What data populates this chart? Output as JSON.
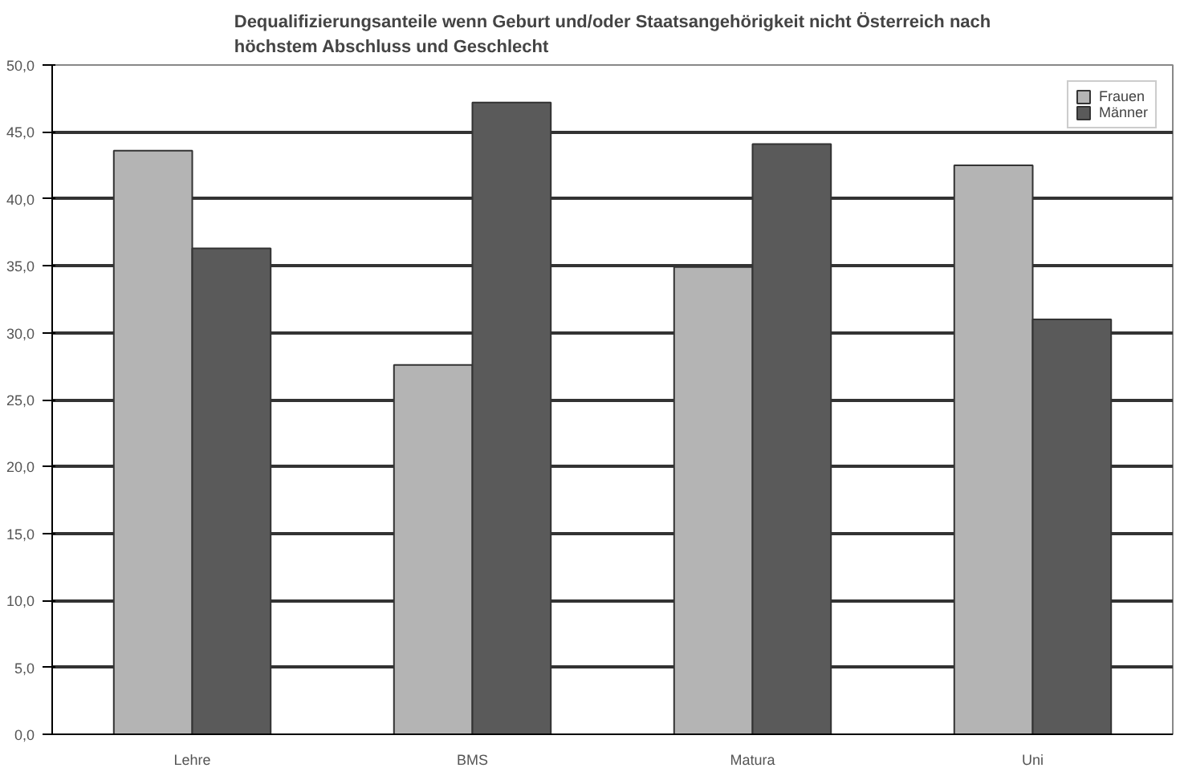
{
  "chart_data": {
    "type": "bar",
    "title": "Dequalifizierungsanteile wenn Geburt und/oder Staatsangehörigkeit nicht Österreich nach\nhöchstem Abschluss und Geschlecht",
    "categories": [
      "Lehre",
      "BMS",
      "Matura",
      "Uni"
    ],
    "series": [
      {
        "name": "Frauen",
        "color": "#b4b4b4",
        "values": [
          43.6,
          27.6,
          34.9,
          42.5
        ]
      },
      {
        "name": "Männer",
        "color": "#5a5a5a",
        "values": [
          36.3,
          47.2,
          44.1,
          31.0
        ]
      }
    ],
    "ylim": [
      0,
      50
    ],
    "yticks": [
      {
        "value": 0,
        "label": "0,0"
      },
      {
        "value": 5,
        "label": "5,0"
      },
      {
        "value": 10,
        "label": "10,0"
      },
      {
        "value": 15,
        "label": "15,0"
      },
      {
        "value": 20,
        "label": "20,0"
      },
      {
        "value": 25,
        "label": "25,0"
      },
      {
        "value": 30,
        "label": "30,0"
      },
      {
        "value": 35,
        "label": "35,0"
      },
      {
        "value": 40,
        "label": "40,0"
      },
      {
        "value": 45,
        "label": "45,0"
      },
      {
        "value": 50,
        "label": "50,0"
      }
    ],
    "grid": "y",
    "legend": "top right"
  }
}
